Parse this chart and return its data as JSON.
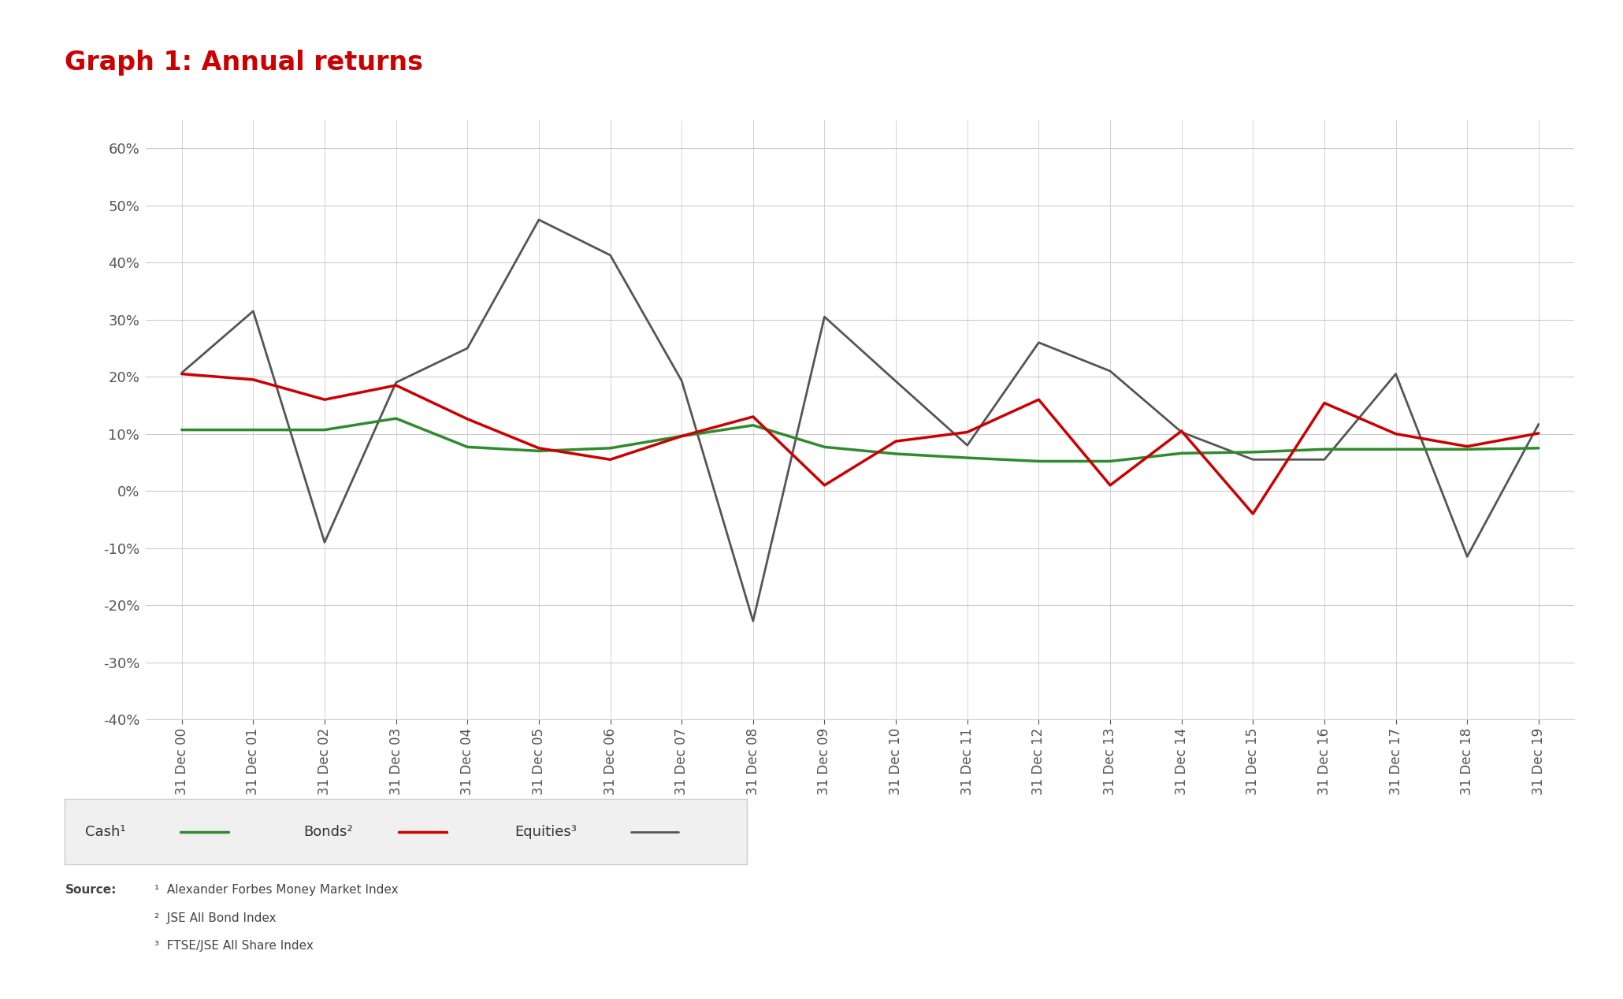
{
  "title": "Graph 1: Annual returns",
  "title_color": "#cc0000",
  "title_fontsize": 24,
  "background_color": "#ffffff",
  "plot_bg_color": "#ffffff",
  "grid_color": "#cccccc",
  "x_labels": [
    "31 Dec 00",
    "31 Dec 01",
    "31 Dec 02",
    "31 Dec 03",
    "31 Dec 04",
    "31 Dec 05",
    "31 Dec 06",
    "31 Dec 07",
    "31 Dec 08",
    "31 Dec 09",
    "31 Dec 10",
    "31 Dec 11",
    "31 Dec 12",
    "31 Dec 13",
    "31 Dec 14",
    "31 Dec 15",
    "31 Dec 16",
    "31 Dec 17",
    "31 Dec 18",
    "31 Dec 19"
  ],
  "cash": [
    0.107,
    0.107,
    0.107,
    0.127,
    0.077,
    0.07,
    0.075,
    0.096,
    0.115,
    0.077,
    0.065,
    0.058,
    0.052,
    0.052,
    0.066,
    0.068,
    0.073,
    0.073,
    0.073,
    0.075
  ],
  "bonds": [
    0.205,
    0.195,
    0.16,
    0.185,
    0.126,
    0.075,
    0.055,
    0.096,
    0.13,
    0.01,
    0.087,
    0.103,
    0.16,
    0.01,
    0.105,
    -0.04,
    0.154,
    0.1,
    0.078,
    0.101
  ],
  "equities": [
    0.207,
    0.315,
    -0.09,
    0.19,
    0.25,
    0.475,
    0.413,
    0.193,
    -0.228,
    0.305,
    0.192,
    0.08,
    0.26,
    0.21,
    0.103,
    0.055,
    0.055,
    0.205,
    -0.115,
    0.117
  ],
  "cash_color": "#2e8b2e",
  "bonds_color": "#cc0000",
  "equities_color": "#555555",
  "ylim_min": -0.4,
  "ylim_max": 0.65,
  "yticks": [
    -0.4,
    -0.3,
    -0.2,
    -0.1,
    0.0,
    0.1,
    0.2,
    0.3,
    0.4,
    0.5,
    0.6
  ],
  "source_label": "Source:",
  "footnote1": "¹  Alexander Forbes Money Market Index",
  "footnote2": "²  JSE All Bond Index",
  "footnote3": "³  FTSE/JSE All Share Index",
  "legend_cash": "Cash¹",
  "legend_bonds": "Bonds²",
  "legend_equities": "Equities³",
  "legend_bg": "#f0f0f0",
  "legend_border": "#cccccc",
  "tick_color": "#555555",
  "label_color": "#333333"
}
